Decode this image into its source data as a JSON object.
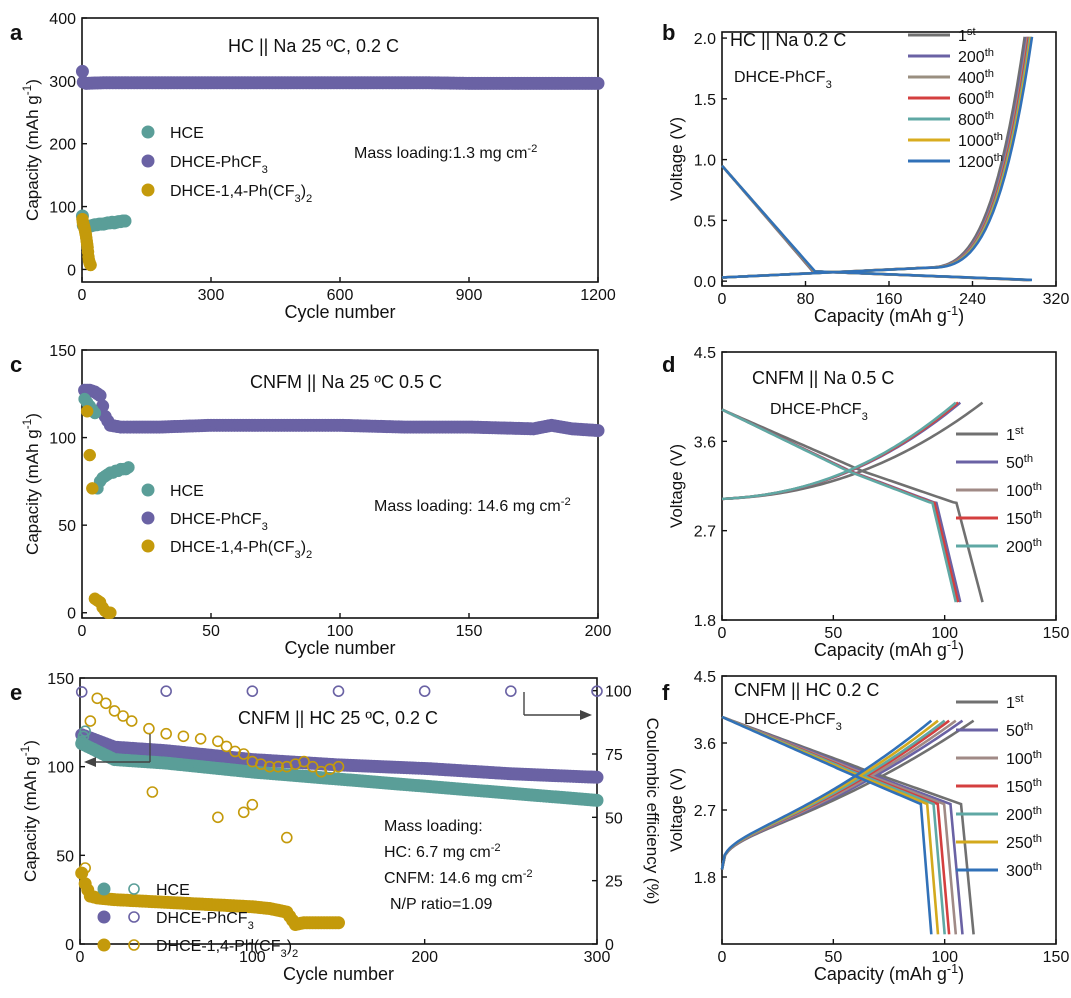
{
  "figure": {
    "colors": {
      "teal": "#5a9e98",
      "purple": "#6a62a4",
      "gold": "#c49a0b",
      "c1": "#707070",
      "c50": "#6a62a4",
      "c100": "#a08a86",
      "c150": "#d43f3f",
      "c200": "#5fa8a4",
      "c250": "#d3a91d",
      "c300": "#3171b8",
      "c400": "#9a8f80",
      "c1000": "#d9ac1f"
    }
  },
  "chart_data": [
    {
      "panel": "a",
      "type": "scatter",
      "title": "HC || Na  25 ºC, 0.2 C",
      "annotation": "Mass loading:1.3 mg cm-2",
      "xlabel": "Cycle number",
      "ylabel": "Capacity (mAh g-1)",
      "xlim": [
        0,
        1200
      ],
      "ylim": [
        -20,
        400
      ],
      "xticks": [
        0,
        300,
        600,
        900,
        1200
      ],
      "yticks": [
        0,
        100,
        200,
        300,
        400
      ],
      "legend_position": "middle-left",
      "series": [
        {
          "name": "HCE",
          "color": "teal",
          "x": [
            1,
            3,
            5,
            8,
            10,
            15,
            20,
            25,
            30,
            35,
            40,
            45,
            50,
            55,
            60,
            65,
            70,
            75,
            80,
            85,
            90,
            95,
            100
          ],
          "y": [
            85,
            70,
            69,
            68,
            67,
            68,
            69,
            70,
            71,
            71,
            72,
            72,
            72,
            73,
            74,
            74,
            75,
            74,
            75,
            76,
            76,
            77,
            77
          ]
        },
        {
          "name": "DHCE-PhCF3",
          "color": "purple",
          "x": [
            1,
            3,
            10,
            50,
            100,
            200,
            300,
            400,
            500,
            600,
            700,
            800,
            900,
            1000,
            1100,
            1200
          ],
          "y": [
            315,
            298,
            296,
            297,
            297,
            297,
            297,
            297,
            297,
            297,
            297,
            297,
            296,
            296,
            296,
            296
          ]
        },
        {
          "name": "DHCE-1,4-Ph(CF3)2",
          "color": "gold",
          "x": [
            1,
            2,
            3,
            4,
            5,
            6,
            7,
            8,
            9,
            10,
            11,
            12,
            13,
            14,
            15,
            16,
            17,
            18,
            19,
            20
          ],
          "y": [
            80,
            75,
            72,
            70,
            68,
            65,
            62,
            58,
            55,
            50,
            45,
            40,
            35,
            28,
            20,
            15,
            12,
            10,
            8,
            7
          ]
        }
      ]
    },
    {
      "panel": "b",
      "type": "line",
      "title": "HC || Na 0.2 C",
      "subtitle": "DHCE-PhCF3",
      "xlabel": "Capacity (mAh g-1)",
      "ylabel": "Voltage (V)",
      "xlim": [
        0,
        320
      ],
      "ylim": [
        -0.04,
        2.05
      ],
      "xticks": [
        0,
        80,
        160,
        240,
        320
      ],
      "yticks": [
        0.0,
        0.5,
        1.0,
        1.5,
        2.0
      ],
      "legend": [
        "1st",
        "200th",
        "400th",
        "600th",
        "800th",
        "1000th",
        "1200th"
      ],
      "legend_colors": [
        "c1",
        "c50",
        "c400",
        "c150",
        "c200",
        "c1000",
        "c300"
      ],
      "curve_capacity_end": [
        290,
        292,
        293,
        294,
        295,
        296,
        297
      ]
    },
    {
      "panel": "c",
      "type": "scatter",
      "title": "CNFM || Na      25 ºC  0.5 C",
      "annotation": "Mass loading: 14.6 mg cm-2",
      "xlabel": "Cycle number",
      "ylabel": "Capacity (mAh g-1)",
      "xlim": [
        0,
        200
      ],
      "ylim": [
        -3,
        150
      ],
      "xticks": [
        0,
        50,
        100,
        150,
        200
      ],
      "yticks": [
        0,
        50,
        100,
        150
      ],
      "legend_position": "middle-left",
      "series": [
        {
          "name": "HCE",
          "color": "teal",
          "x": [
            1,
            2,
            3,
            4,
            5,
            6,
            7,
            8,
            9,
            10,
            11,
            12,
            13,
            14,
            15,
            16,
            17,
            18
          ],
          "y": [
            122,
            120,
            118,
            116,
            114,
            71,
            75,
            77,
            78,
            79,
            80,
            80,
            81,
            81,
            82,
            82,
            82,
            83
          ]
        },
        {
          "name": "DHCE-PhCF3",
          "color": "purple",
          "x": [
            1,
            3,
            5,
            7,
            9,
            11,
            15,
            20,
            30,
            50,
            75,
            100,
            125,
            150,
            175,
            182,
            190,
            200
          ],
          "y": [
            127,
            127,
            126,
            124,
            112,
            107,
            106,
            106,
            106,
            107,
            107,
            107,
            106,
            106,
            105,
            107,
            105,
            104
          ]
        },
        {
          "name": "DHCE-1,4-Ph(CF3)2",
          "color": "gold",
          "x": [
            2,
            3,
            4,
            5,
            6,
            7,
            8,
            9,
            10,
            11
          ],
          "y": [
            115,
            90,
            71,
            8,
            7,
            6,
            3,
            1,
            0,
            0
          ]
        }
      ]
    },
    {
      "panel": "d",
      "type": "line",
      "title": "CNFM || Na  0.5 C",
      "subtitle": "DHCE-PhCF3",
      "xlabel": "Capacity (mAh g-1)",
      "ylabel": "Voltage (V)",
      "xlim": [
        0,
        150
      ],
      "ylim": [
        1.8,
        4.5
      ],
      "xticks": [
        0,
        50,
        100,
        150
      ],
      "yticks": [
        1.8,
        2.7,
        3.6,
        4.5
      ],
      "legend": [
        "1st",
        "50th",
        "100th",
        "150th",
        "200th"
      ],
      "legend_colors": [
        "c1",
        "c50",
        "c100",
        "c150",
        "c200"
      ],
      "curve_capacity_end": [
        117,
        107,
        106,
        106,
        105
      ]
    },
    {
      "panel": "e",
      "type": "scatter",
      "title": "CNFM || HC   25 ºC, 0.2 C",
      "annotation": [
        "Mass loading:",
        "HC: 6.7 mg cm-2",
        "CNFM: 14.6 mg cm-2",
        "N/P ratio=1.09"
      ],
      "xlabel": "Cycle number",
      "ylabel": "Capacity (mAh g-1)",
      "ylabel_right": "Coulombic efficiency (%)",
      "xlim": [
        0,
        300
      ],
      "ylim": [
        0,
        150
      ],
      "ylim_right": [
        0,
        105
      ],
      "xticks": [
        0,
        100,
        200,
        300
      ],
      "yticks": [
        0,
        50,
        100,
        150
      ],
      "yticks_right": [
        0,
        25,
        50,
        75,
        100
      ],
      "legend_position": "lower-left",
      "series": [
        {
          "name": "HCE",
          "color": "teal",
          "axis": "left",
          "x": [
            1,
            20,
            50,
            100,
            150,
            200,
            250,
            300
          ],
          "y": [
            113,
            104,
            102,
            97,
            93,
            89,
            85,
            81
          ]
        },
        {
          "name": "DHCE-PhCF3",
          "color": "purple",
          "axis": "left",
          "x": [
            1,
            20,
            50,
            100,
            150,
            200,
            250,
            300
          ],
          "y": [
            118,
            111,
            109,
            104,
            101,
            99,
            96,
            94
          ]
        },
        {
          "name": "DHCE-1,4-Ph(CF3)2",
          "color": "gold",
          "axis": "left",
          "x": [
            1,
            3,
            6,
            10,
            20,
            40,
            60,
            80,
            100,
            110,
            115,
            120,
            125,
            130,
            140,
            150
          ],
          "y": [
            40,
            34,
            27,
            26,
            25,
            24,
            23,
            22,
            21,
            20,
            19,
            18,
            11,
            12,
            12,
            12
          ]
        },
        {
          "name": "HCE CE",
          "color": "teal",
          "axis": "right",
          "open": true,
          "x": [
            1,
            2,
            3
          ],
          "y": [
            80,
            82,
            84
          ]
        },
        {
          "name": "DHCE-PhCF3 CE",
          "color": "purple",
          "axis": "right",
          "open": true,
          "x": [
            1,
            50,
            100,
            150,
            200,
            250,
            300
          ],
          "y": [
            99.5,
            99.8,
            99.8,
            99.8,
            99.8,
            99.8,
            99.8
          ]
        },
        {
          "name": "DHCE-1,4-Ph(CF3)2 CE",
          "color": "gold",
          "axis": "right",
          "open": true,
          "x": [
            3,
            6,
            10,
            15,
            20,
            25,
            30,
            40,
            50,
            60,
            70,
            80,
            85,
            90,
            95,
            100,
            105,
            110,
            115,
            120,
            125,
            130,
            135,
            140,
            145,
            150,
            42,
            100,
            80,
            95,
            120
          ],
          "y": [
            30,
            88,
            97,
            95,
            92,
            90,
            88,
            85,
            83,
            82,
            81,
            80,
            78,
            76,
            75,
            72,
            71,
            70,
            70,
            70,
            71,
            72,
            70,
            68,
            69,
            70,
            60,
            55,
            50,
            52,
            42
          ]
        }
      ],
      "arrows": [
        {
          "direction": "left",
          "axis": "left"
        },
        {
          "direction": "right",
          "axis": "right"
        }
      ]
    },
    {
      "panel": "f",
      "type": "line",
      "title": "CNFM || HC  0.2 C",
      "subtitle": "DHCE-PhCF3",
      "xlabel": "Capacity (mAh g-1)",
      "ylabel": "Voltage (V)",
      "xlim": [
        0,
        150
      ],
      "ylim": [
        0.9,
        4.5
      ],
      "xticks": [
        0,
        50,
        100,
        150
      ],
      "yticks": [
        1.8,
        2.7,
        3.6,
        4.5
      ],
      "legend": [
        "1st",
        "50th",
        "100th",
        "150th",
        "200th",
        "250th",
        "300th"
      ],
      "legend_colors": [
        "c1",
        "c50",
        "c100",
        "c150",
        "c200",
        "c250",
        "c300"
      ],
      "curve_capacity_end": [
        113,
        108,
        105,
        102,
        100,
        97,
        94
      ]
    }
  ]
}
